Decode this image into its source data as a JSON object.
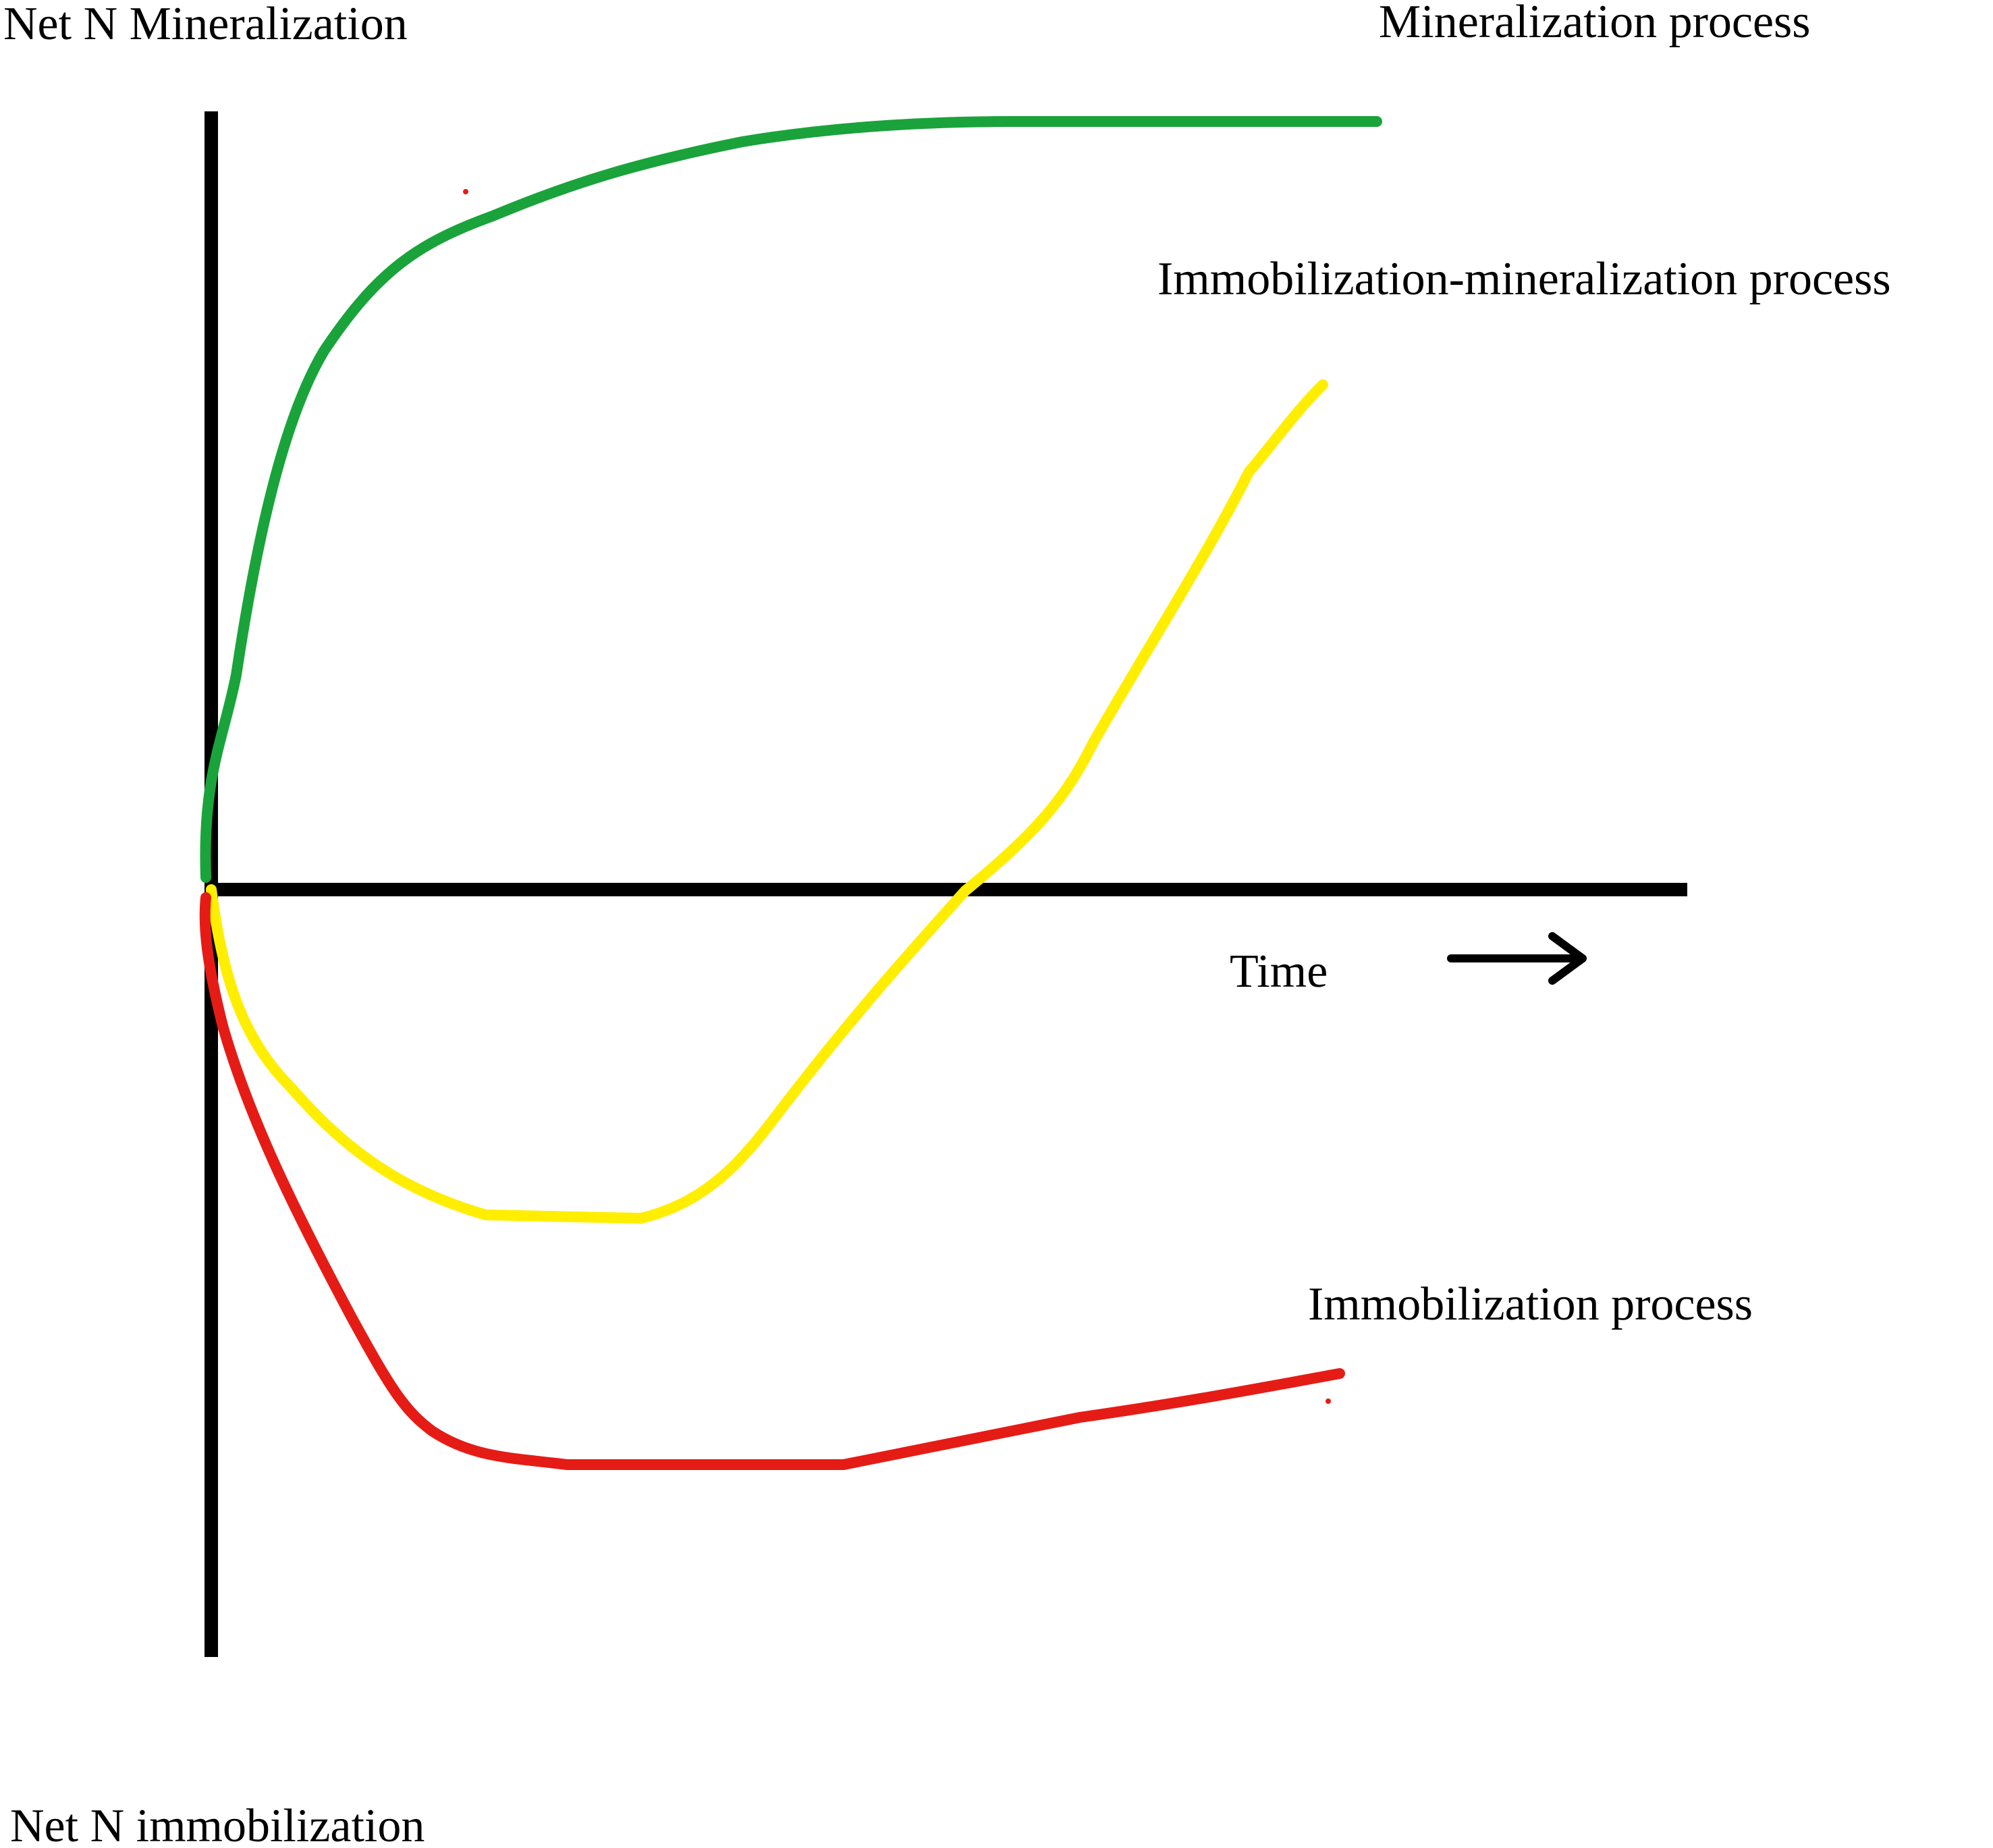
{
  "labels": {
    "y_top": "Net N Mineralization",
    "y_bottom": "Net N immobilization",
    "x_axis": "Time"
  },
  "curves": [
    {
      "id": "mineralization",
      "name": "Mineralization process",
      "color": "#1aa33a",
      "trend": "rises steeply from zero, then levels off at a high positive plateau"
    },
    {
      "id": "immobilization-mineralization",
      "name": "Immobilization-mineralization process",
      "color": "#ffee00",
      "trend": "dips below zero to a minimum, then rises and crosses zero into net mineralization"
    },
    {
      "id": "immobilization",
      "name": "Immobilization process",
      "color": "#e51c16",
      "trend": "drops steeply below zero, bottoms out and stays negative with a slow partial recovery"
    }
  ],
  "icons": {
    "time_arrow": "right-arrow-icon"
  }
}
